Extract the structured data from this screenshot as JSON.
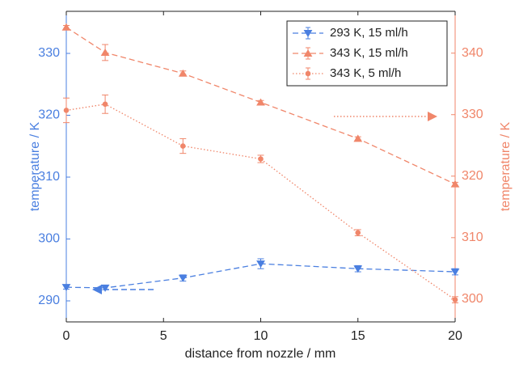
{
  "chart_data": {
    "type": "line",
    "x_label": "distance from nozzle / mm",
    "y_label": "temperature / K",
    "y2_label": "temperature / K",
    "xlim": [
      0,
      20
    ],
    "xticks": [
      0,
      5,
      10,
      15,
      20
    ],
    "ylim": [
      286.6,
      336.8
    ],
    "yticks": [
      290,
      300,
      310,
      320,
      330
    ],
    "y_color": "#4a7fe0",
    "y2lim": [
      296.3,
      346.8
    ],
    "y2ticks": [
      300,
      310,
      320,
      330,
      340
    ],
    "y2_color": "#f0866a",
    "legend": "upper right",
    "x": [
      0,
      2,
      6,
      10,
      15,
      20
    ],
    "series": [
      {
        "name": "293 K, 15 ml/h",
        "color": "#4a7fe0",
        "line_style": "dashed",
        "marker": "v",
        "values": [
          292.2,
          292.1,
          293.7,
          296.0,
          295.2,
          294.7
        ],
        "errors": [
          0.3,
          0.3,
          0.5,
          0.8,
          0.5,
          0.5
        ]
      },
      {
        "name": "343 K, 15 ml/h",
        "color": "#f0866a",
        "line_style": "dashed",
        "marker": "^",
        "axis": "y2",
        "values": [
          344.2,
          340.1,
          336.7,
          332.0,
          326.1,
          318.7
        ],
        "errors": [
          0.3,
          1.3,
          0.4,
          0.3,
          0.3,
          0.3
        ]
      },
      {
        "name": "343 K, 5 ml/h",
        "color": "#f0866a",
        "line_style": "dotted",
        "marker": "o",
        "axis": "y2",
        "values": [
          330.7,
          331.7,
          324.9,
          322.8,
          310.8,
          299.9
        ],
        "errors": [
          2.0,
          1.5,
          1.2,
          0.6,
          0.5,
          0.5
        ]
      }
    ]
  }
}
